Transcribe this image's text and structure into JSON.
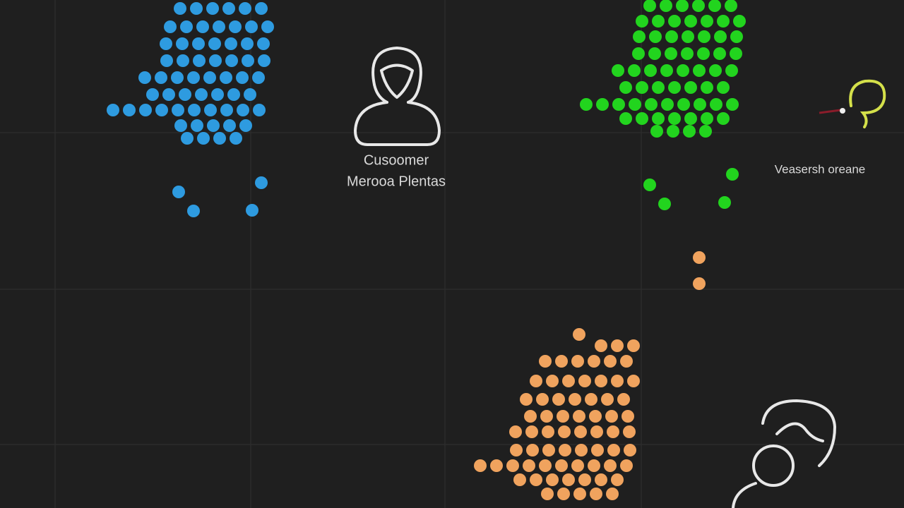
{
  "nodes": [
    {
      "lines": [
        "Cusoomer",
        "Merooa Plentas"
      ]
    },
    {
      "lines": [
        "Veasersh oreane"
      ]
    }
  ]
}
